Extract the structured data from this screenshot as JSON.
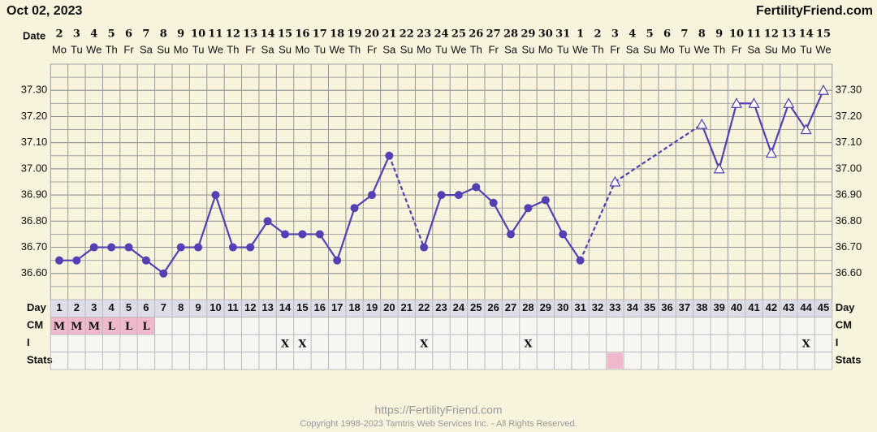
{
  "chart_data": {
    "type": "line",
    "header_date": "Oct 02, 2023",
    "site": "FertilityFriend.com",
    "date_label": "Date",
    "dates": [
      "2",
      "3",
      "4",
      "5",
      "6",
      "7",
      "8",
      "9",
      "10",
      "11",
      "12",
      "13",
      "14",
      "15",
      "16",
      "17",
      "18",
      "19",
      "20",
      "21",
      "22",
      "23",
      "24",
      "25",
      "26",
      "27",
      "28",
      "29",
      "30",
      "31",
      "1",
      "2",
      "3",
      "4",
      "5",
      "6",
      "7",
      "8",
      "9",
      "10",
      "11",
      "12",
      "13",
      "14",
      "15"
    ],
    "weekdays": [
      "Mo",
      "Tu",
      "We",
      "Th",
      "Fr",
      "Sa",
      "Su",
      "Mo",
      "Tu",
      "We",
      "Th",
      "Fr",
      "Sa",
      "Su",
      "Mo",
      "Tu",
      "We",
      "Th",
      "Fr",
      "Sa",
      "Su",
      "Mo",
      "Tu",
      "We",
      "Th",
      "Fr",
      "Sa",
      "Su",
      "Mo",
      "Tu",
      "We",
      "Th",
      "Fr",
      "Sa",
      "Su",
      "Mo",
      "Tu",
      "We",
      "Th",
      "Fr",
      "Sa",
      "Su",
      "Mo",
      "Tu",
      "We"
    ],
    "day_label": "Day",
    "categories": [
      1,
      2,
      3,
      4,
      5,
      6,
      7,
      8,
      9,
      10,
      11,
      12,
      13,
      14,
      15,
      16,
      17,
      18,
      19,
      20,
      21,
      22,
      23,
      24,
      25,
      26,
      27,
      28,
      29,
      30,
      31,
      32,
      33,
      34,
      35,
      36,
      37,
      38,
      39,
      40,
      41,
      42,
      43,
      44,
      45
    ],
    "series": [
      {
        "marker": "circle",
        "color": "#5240b4",
        "values": [
          36.65,
          36.65,
          36.7,
          36.7,
          36.7,
          36.65,
          36.6,
          36.7,
          36.7,
          36.9,
          36.7,
          36.7,
          36.8,
          36.75,
          36.75,
          36.75,
          36.65,
          36.85,
          36.9,
          37.05,
          null,
          36.7,
          36.9,
          36.9,
          36.93,
          36.87,
          36.75,
          36.85,
          36.88,
          36.75,
          36.65,
          null,
          null,
          null,
          null,
          null,
          null,
          null,
          null,
          null,
          null,
          null,
          null,
          null,
          null
        ]
      },
      {
        "marker": "triangle",
        "color": "#5240b4",
        "values": [
          null,
          null,
          null,
          null,
          null,
          null,
          null,
          null,
          null,
          null,
          null,
          null,
          null,
          null,
          null,
          null,
          null,
          null,
          null,
          null,
          null,
          null,
          null,
          null,
          null,
          null,
          null,
          null,
          null,
          null,
          null,
          null,
          36.95,
          null,
          null,
          null,
          null,
          37.17,
          37.0,
          37.25,
          37.25,
          37.06,
          37.25,
          37.15,
          37.3
        ]
      }
    ],
    "ylim": [
      36.5,
      37.4
    ],
    "yticks": [
      {
        "value": 36.6,
        "label": "36.60"
      },
      {
        "value": 36.7,
        "label": "36.70"
      },
      {
        "value": 36.8,
        "label": "36.80"
      },
      {
        "value": 36.9,
        "label": "36.90"
      },
      {
        "value": 37.0,
        "label": "37.00"
      },
      {
        "value": 37.1,
        "label": "37.10"
      },
      {
        "value": 37.2,
        "label": "37.20"
      },
      {
        "value": 37.3,
        "label": "37.30"
      }
    ],
    "grid": true,
    "rows": [
      {
        "label": "CM",
        "highlight_color": "#f0b8cc",
        "cells": [
          "M",
          "M",
          "M",
          "L",
          "L",
          "L",
          null,
          null,
          null,
          null,
          null,
          null,
          null,
          null,
          null,
          null,
          null,
          null,
          null,
          null,
          null,
          null,
          null,
          null,
          null,
          null,
          null,
          null,
          null,
          null,
          null,
          null,
          null,
          null,
          null,
          null,
          null,
          null,
          null,
          null,
          null,
          null,
          null,
          null,
          null
        ]
      },
      {
        "label": "I",
        "cells": [
          null,
          null,
          null,
          null,
          null,
          null,
          null,
          null,
          null,
          null,
          null,
          null,
          null,
          "X",
          "X",
          null,
          null,
          null,
          null,
          null,
          null,
          "X",
          null,
          null,
          null,
          null,
          null,
          "X",
          null,
          null,
          null,
          null,
          null,
          null,
          null,
          null,
          null,
          null,
          null,
          null,
          null,
          null,
          null,
          "X",
          null
        ]
      },
      {
        "label": "Stats",
        "highlight_color": "#f0b8cc",
        "highlight_days": [
          33
        ]
      }
    ],
    "footer_url": "https://FertilityFriend.com",
    "copyright": "Copyright 1998-2023 Tamtris Web Services Inc. - All Rights Reserved."
  }
}
